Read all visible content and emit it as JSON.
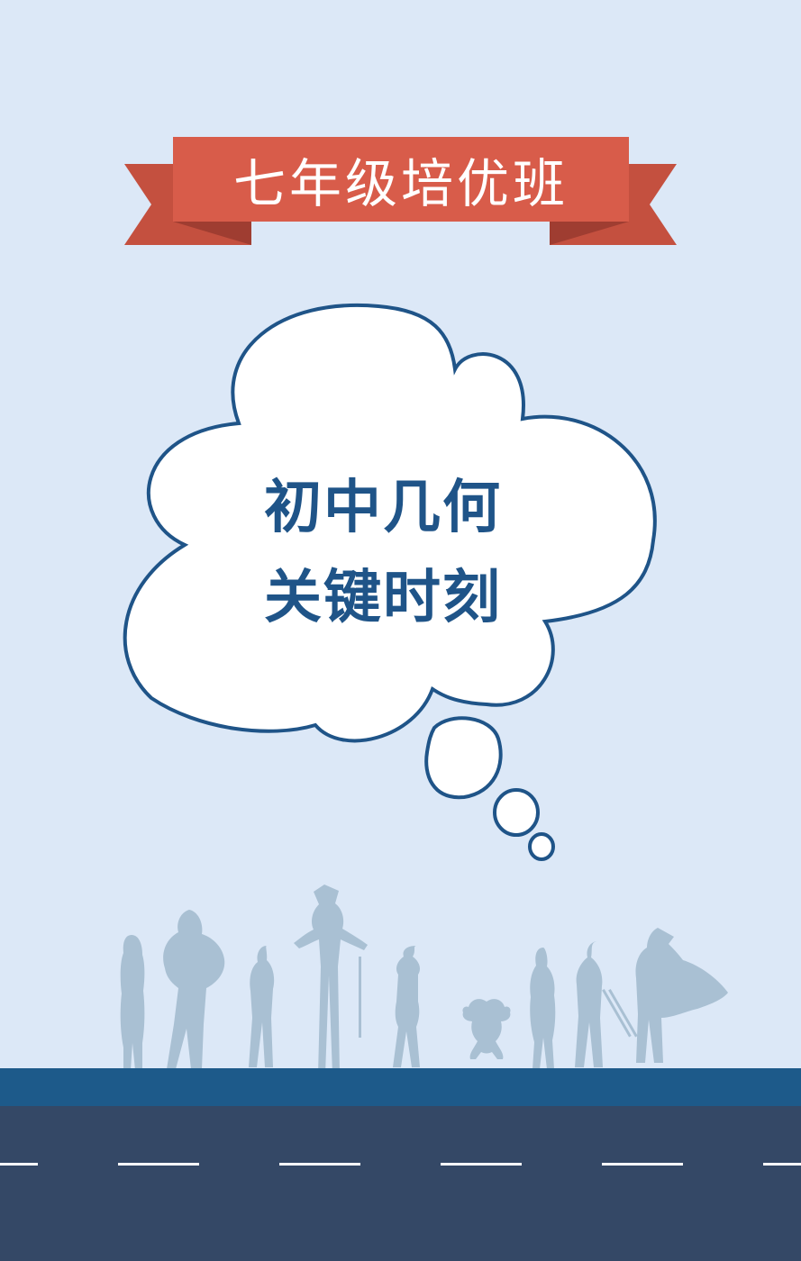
{
  "banner": {
    "title": "七年级培优班"
  },
  "bubble": {
    "line1": "初中几何",
    "line2": "关键时刻"
  },
  "colors": {
    "background": "#dce8f7",
    "ribbon": "#d85c4a",
    "ribbon_shadow": "#b44a3c",
    "title_text": "#1f5488",
    "bubble_outline": "#1f5488",
    "silhouettes": "#a9c0d3",
    "road_edge": "#1d5a8a",
    "road": "#344866",
    "lane_marks": "#ffffff"
  },
  "icons": [
    "ribbon-banner",
    "thought-bubble",
    "character-silhouettes",
    "road"
  ]
}
